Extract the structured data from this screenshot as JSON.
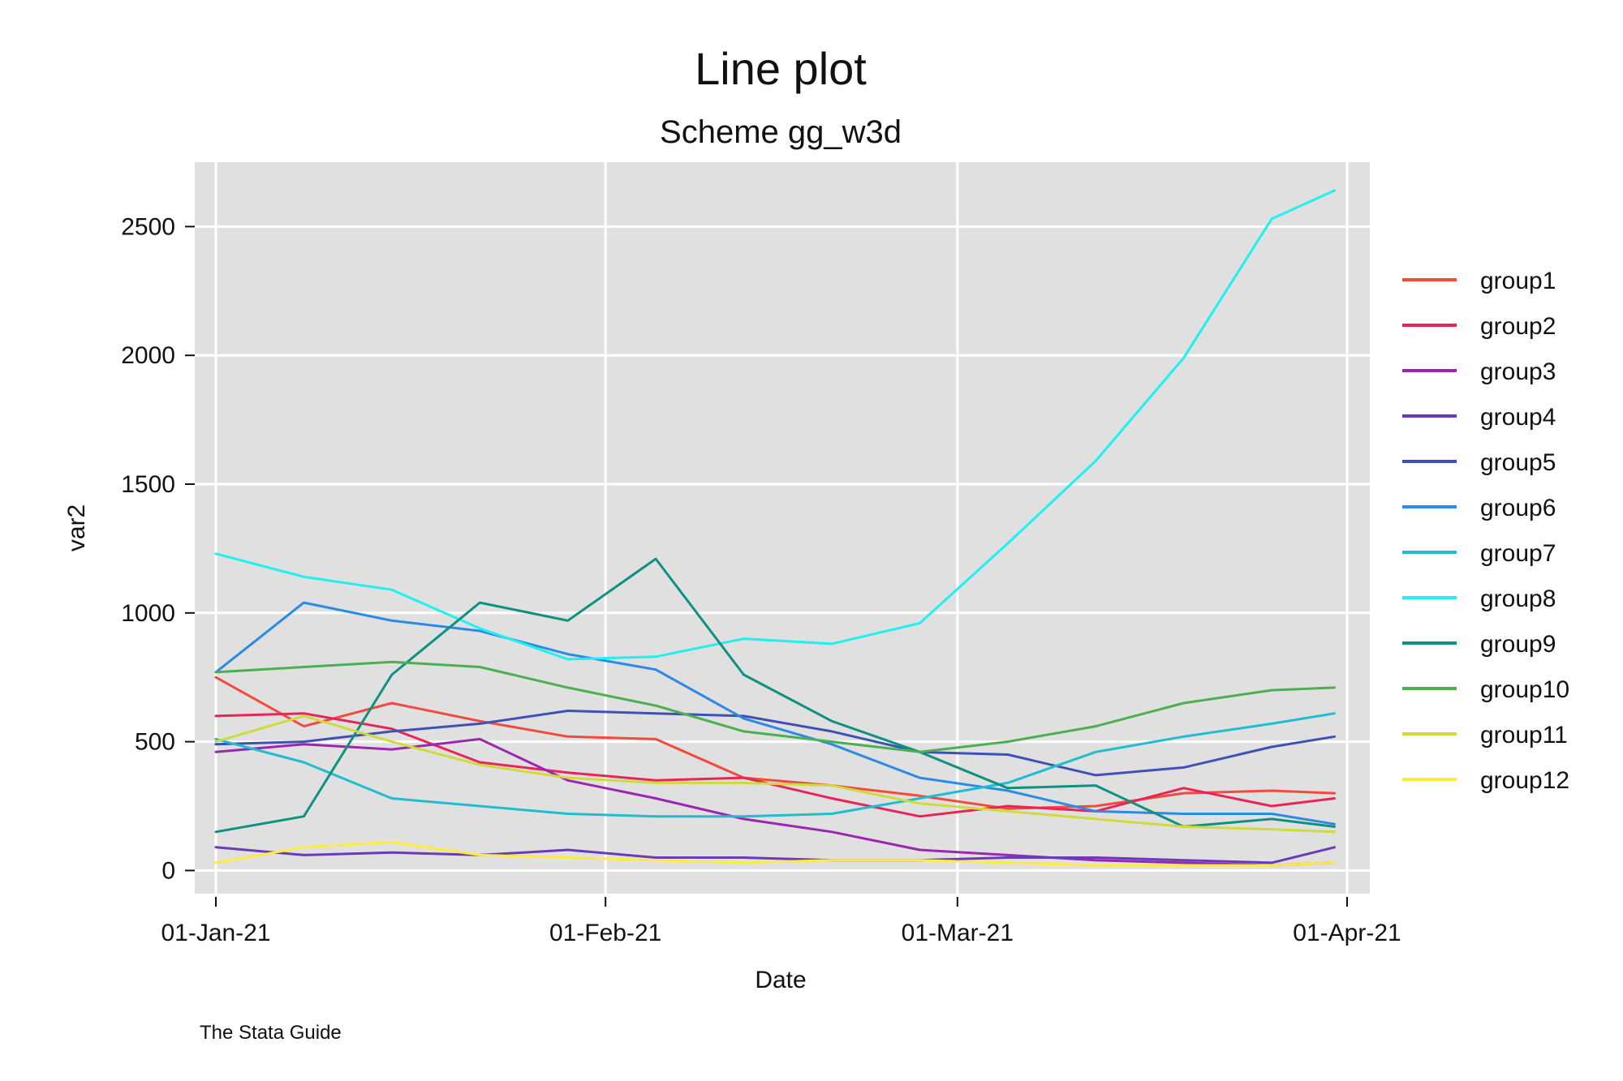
{
  "chart_data": {
    "type": "line",
    "title": "Line plot",
    "subtitle": "Scheme gg_w3d",
    "xlabel": "Date",
    "ylabel": "var2",
    "note": "The Stata Guide",
    "xlim": [
      "2021-01-01",
      "2021-04-01"
    ],
    "ylim": [
      -90,
      2750
    ],
    "x_ticks": [
      {
        "date": "2021-01-01",
        "label": "01-Jan-21"
      },
      {
        "date": "2021-02-01",
        "label": "01-Feb-21"
      },
      {
        "date": "2021-03-01",
        "label": "01-Mar-21"
      },
      {
        "date": "2021-04-01",
        "label": "01-Apr-21"
      }
    ],
    "y_ticks": [
      0,
      500,
      1000,
      1500,
      2000,
      2500
    ],
    "grid": true,
    "legend_position": "right",
    "background_color": "#e0e0e0",
    "start_date": "2021-01-01",
    "dates_note": "values sampled weekly from 2021-01-01 to 2021-03-26, plus 2021-03-31",
    "x_dates": [
      "2021-01-01",
      "2021-01-08",
      "2021-01-15",
      "2021-01-22",
      "2021-01-29",
      "2021-02-05",
      "2021-02-12",
      "2021-02-19",
      "2021-02-26",
      "2021-03-05",
      "2021-03-12",
      "2021-03-19",
      "2021-03-26",
      "2021-03-31"
    ],
    "series": [
      {
        "name": "group1",
        "color": "#f24b3c",
        "values": [
          750,
          560,
          650,
          580,
          520,
          510,
          360,
          330,
          290,
          240,
          250,
          300,
          310,
          300
        ]
      },
      {
        "name": "group2",
        "color": "#e8245a",
        "values": [
          600,
          610,
          550,
          420,
          380,
          350,
          360,
          280,
          210,
          250,
          230,
          320,
          250,
          280
        ]
      },
      {
        "name": "group3",
        "color": "#9b27b0",
        "values": [
          460,
          490,
          470,
          510,
          350,
          280,
          200,
          150,
          80,
          60,
          40,
          30,
          20,
          30
        ]
      },
      {
        "name": "group4",
        "color": "#6a3bb8",
        "values": [
          90,
          60,
          70,
          60,
          80,
          50,
          50,
          40,
          40,
          50,
          50,
          40,
          30,
          90
        ]
      },
      {
        "name": "group5",
        "color": "#3f51b5",
        "values": [
          490,
          500,
          540,
          570,
          620,
          610,
          600,
          540,
          460,
          450,
          370,
          400,
          480,
          520
        ]
      },
      {
        "name": "group6",
        "color": "#2b8ae6",
        "values": [
          770,
          1040,
          970,
          930,
          840,
          780,
          590,
          490,
          360,
          310,
          230,
          220,
          220,
          180
        ]
      },
      {
        "name": "group7",
        "color": "#1fbcd2",
        "values": [
          510,
          420,
          280,
          250,
          220,
          210,
          210,
          220,
          280,
          340,
          460,
          520,
          570,
          610
        ]
      },
      {
        "name": "group8",
        "color": "#1ff0f0",
        "values": [
          1230,
          1140,
          1090,
          940,
          820,
          830,
          900,
          880,
          960,
          1270,
          1590,
          1990,
          2530,
          2640
        ]
      },
      {
        "name": "group9",
        "color": "#0e9180",
        "values": [
          150,
          210,
          760,
          1040,
          970,
          1210,
          760,
          580,
          460,
          320,
          330,
          170,
          200,
          170
        ]
      },
      {
        "name": "group10",
        "color": "#4caf50",
        "values": [
          770,
          790,
          810,
          790,
          710,
          640,
          540,
          500,
          460,
          500,
          560,
          650,
          700,
          710
        ]
      },
      {
        "name": "group11",
        "color": "#cddc39",
        "values": [
          500,
          600,
          500,
          410,
          360,
          340,
          340,
          330,
          260,
          230,
          200,
          170,
          160,
          150
        ]
      },
      {
        "name": "group12",
        "color": "#ffeb3b",
        "values": [
          30,
          90,
          110,
          60,
          50,
          40,
          30,
          40,
          40,
          30,
          20,
          20,
          20,
          30
        ]
      }
    ]
  }
}
